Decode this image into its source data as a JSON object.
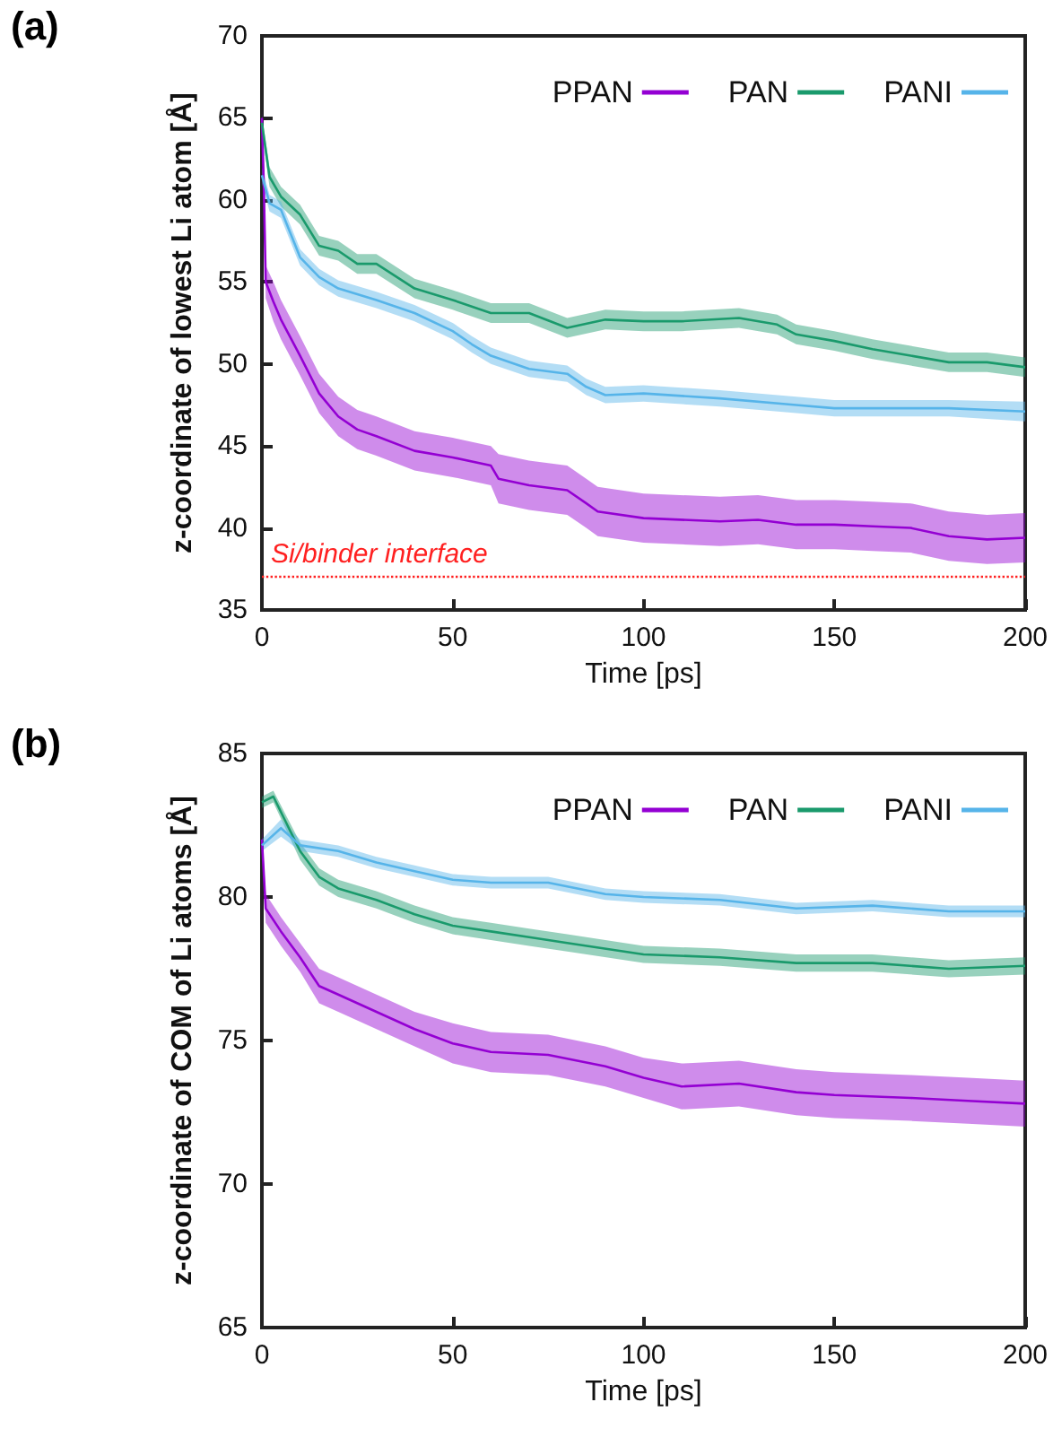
{
  "chart_data": [
    {
      "type": "line",
      "annotations": [
        "(a)"
      ],
      "xlabel": "Time [ps]",
      "ylabel": "z-coordinate of lowest Li atom [Å]",
      "xlim": [
        0,
        200
      ],
      "xticks": [
        0,
        50,
        100,
        150,
        200
      ],
      "ylim": [
        35,
        70
      ],
      "yticks": [
        35,
        40,
        45,
        50,
        55,
        60,
        65,
        70
      ],
      "legend": "top right",
      "marker": "none",
      "line_style": "solid",
      "grid": false,
      "ref_lines": [
        {
          "axis": "y",
          "value": 37,
          "label": "Si/binder interface",
          "color": "#ff2020",
          "line_style": "dotted"
        }
      ],
      "series": [
        {
          "name": "PPAN",
          "color": "#9400d3",
          "x": [
            0,
            0.5,
            1,
            3,
            5,
            10,
            15,
            20,
            25,
            30,
            40,
            50,
            60,
            62,
            70,
            80,
            85,
            88,
            100,
            120,
            130,
            140,
            150,
            160,
            170,
            180,
            190,
            200
          ],
          "values": [
            65,
            60.9,
            55,
            53.8,
            52.7,
            50.5,
            48.2,
            46.8,
            46,
            45.6,
            44.7,
            44.3,
            43.8,
            43,
            42.6,
            42.3,
            41.5,
            41,
            40.6,
            40.4,
            40.5,
            40.2,
            40.2,
            40.1,
            40,
            39.5,
            39.3,
            39.4
          ],
          "lower": [
            64.5,
            59.9,
            54,
            52.6,
            51.5,
            49.3,
            47,
            45.6,
            44.8,
            44.4,
            43.5,
            43.1,
            42.6,
            41.5,
            41.1,
            40.8,
            40,
            39.5,
            39.1,
            38.9,
            39,
            38.7,
            38.7,
            38.6,
            38.5,
            38,
            37.8,
            37.9
          ],
          "upper": [
            65.5,
            61.9,
            56,
            55,
            53.9,
            51.7,
            49.4,
            48,
            47.2,
            46.8,
            45.9,
            45.5,
            45,
            44.5,
            44.1,
            43.8,
            43,
            42.5,
            42.1,
            41.9,
            42,
            41.7,
            41.7,
            41.6,
            41.5,
            41,
            40.8,
            40.9
          ]
        },
        {
          "name": "PAN",
          "color": "#1a9a6c",
          "x": [
            0,
            2,
            5,
            10,
            15,
            20,
            25,
            30,
            40,
            50,
            60,
            70,
            80,
            90,
            100,
            110,
            125,
            135,
            140,
            150,
            160,
            170,
            180,
            190,
            200
          ],
          "values": [
            64.7,
            61.4,
            60.2,
            59.1,
            57.2,
            56.9,
            56.1,
            56.1,
            54.6,
            53.9,
            53.1,
            53.1,
            52.2,
            52.7,
            52.6,
            52.6,
            52.8,
            52.4,
            51.8,
            51.4,
            50.9,
            50.5,
            50.1,
            50.1,
            49.8
          ],
          "lower": [
            64.2,
            60.8,
            59.6,
            58.5,
            56.6,
            56.3,
            55.5,
            55.5,
            54,
            53.3,
            52.5,
            52.5,
            51.6,
            52.1,
            52,
            52,
            52.2,
            51.8,
            51.2,
            50.8,
            50.3,
            49.9,
            49.5,
            49.5,
            49.2
          ],
          "upper": [
            65.2,
            62,
            60.8,
            59.7,
            57.8,
            57.5,
            56.7,
            56.7,
            55.2,
            54.5,
            53.7,
            53.7,
            52.8,
            53.3,
            53.2,
            53.2,
            53.4,
            53,
            52.4,
            52,
            51.5,
            51.1,
            50.7,
            50.7,
            50.4
          ]
        },
        {
          "name": "PANI",
          "color": "#56b4e9",
          "x": [
            0,
            2,
            5,
            10,
            15,
            20,
            30,
            40,
            50,
            55,
            60,
            70,
            80,
            85,
            90,
            100,
            120,
            140,
            150,
            160,
            180,
            200
          ],
          "values": [
            61.5,
            59.8,
            59.4,
            56.5,
            55.3,
            54.6,
            53.9,
            53.1,
            52,
            51.2,
            50.5,
            49.7,
            49.4,
            48.6,
            48.1,
            48.2,
            47.9,
            47.5,
            47.3,
            47.3,
            47.3,
            47.1
          ],
          "lower": [
            61,
            59.3,
            58.9,
            56,
            54.8,
            54.1,
            53.4,
            52.6,
            51.5,
            50.7,
            50,
            49.2,
            48.9,
            48.1,
            47.6,
            47.7,
            47.4,
            47,
            46.8,
            46.8,
            46.8,
            46.5
          ],
          "upper": [
            62,
            60.3,
            59.9,
            57,
            55.8,
            55.1,
            54.4,
            53.6,
            52.5,
            51.7,
            51,
            50.2,
            49.9,
            49.1,
            48.6,
            48.7,
            48.4,
            48,
            47.8,
            47.8,
            47.8,
            47.7
          ]
        }
      ]
    },
    {
      "type": "line",
      "annotations": [
        "(b)"
      ],
      "xlabel": "Time [ps]",
      "ylabel": "z-coordinate of COM of Li atoms [Å]",
      "xlim": [
        0,
        200
      ],
      "xticks": [
        0,
        50,
        100,
        150,
        200
      ],
      "ylim": [
        65,
        85
      ],
      "yticks": [
        65,
        70,
        75,
        80,
        85
      ],
      "legend": "top right",
      "marker": "none",
      "line_style": "solid",
      "grid": false,
      "series": [
        {
          "name": "PPAN",
          "color": "#9400d3",
          "x": [
            0,
            1,
            5,
            10,
            15,
            20,
            30,
            40,
            50,
            60,
            75,
            90,
            100,
            110,
            125,
            140,
            150,
            170,
            185,
            200
          ],
          "values": [
            82,
            79.6,
            78.8,
            77.9,
            76.9,
            76.6,
            76,
            75.4,
            74.9,
            74.6,
            74.5,
            74.1,
            73.7,
            73.4,
            73.5,
            73.2,
            73.1,
            73,
            72.9,
            72.8
          ],
          "lower": [
            81.6,
            79.1,
            78.3,
            77.4,
            76.3,
            76,
            75.4,
            74.8,
            74.2,
            73.9,
            73.8,
            73.4,
            73,
            72.6,
            72.7,
            72.4,
            72.3,
            72.2,
            72.1,
            72
          ],
          "upper": [
            82.4,
            80.1,
            79.3,
            78.4,
            77.5,
            77.2,
            76.6,
            76,
            75.6,
            75.3,
            75.2,
            74.8,
            74.4,
            74.2,
            74.3,
            74,
            73.9,
            73.8,
            73.7,
            73.6
          ]
        },
        {
          "name": "PAN",
          "color": "#1a9a6c",
          "x": [
            0,
            3,
            10,
            15,
            20,
            30,
            40,
            50,
            60,
            70,
            80,
            100,
            120,
            140,
            160,
            180,
            200
          ],
          "values": [
            83.3,
            83.5,
            81.6,
            80.7,
            80.3,
            79.9,
            79.4,
            79,
            78.8,
            78.6,
            78.4,
            78,
            77.9,
            77.7,
            77.7,
            77.5,
            77.6
          ],
          "lower": [
            83.1,
            83.3,
            81.3,
            80.4,
            80,
            79.6,
            79.1,
            78.7,
            78.5,
            78.3,
            78.1,
            77.7,
            77.6,
            77.4,
            77.4,
            77.2,
            77.3
          ],
          "upper": [
            83.5,
            83.7,
            81.9,
            81,
            80.6,
            80.2,
            79.7,
            79.3,
            79.1,
            78.9,
            78.7,
            78.3,
            78.2,
            78,
            78,
            77.8,
            77.9
          ]
        },
        {
          "name": "PANI",
          "color": "#56b4e9",
          "x": [
            0,
            5,
            10,
            20,
            30,
            40,
            50,
            60,
            75,
            90,
            100,
            120,
            140,
            160,
            180,
            200
          ],
          "values": [
            81.8,
            82.4,
            81.8,
            81.6,
            81.2,
            80.9,
            80.6,
            80.5,
            80.5,
            80.1,
            80,
            79.9,
            79.6,
            79.7,
            79.5,
            79.5
          ],
          "lower": [
            81.6,
            82.1,
            81.6,
            81.4,
            81,
            80.7,
            80.4,
            80.3,
            80.3,
            79.9,
            79.8,
            79.7,
            79.4,
            79.5,
            79.3,
            79.3
          ],
          "upper": [
            82,
            82.7,
            82,
            81.8,
            81.4,
            81.1,
            80.8,
            80.7,
            80.7,
            80.3,
            80.2,
            80.1,
            79.8,
            79.9,
            79.7,
            79.7
          ]
        }
      ]
    }
  ]
}
